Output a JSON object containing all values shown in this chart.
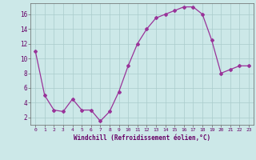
{
  "x": [
    0,
    1,
    2,
    3,
    4,
    5,
    6,
    7,
    8,
    9,
    10,
    11,
    12,
    13,
    14,
    15,
    16,
    17,
    18,
    19,
    20,
    21,
    22,
    23
  ],
  "y": [
    11,
    5,
    3,
    2.8,
    4.5,
    3,
    3,
    1.5,
    2.8,
    5.5,
    9,
    12,
    14,
    15.5,
    16,
    16.5,
    17,
    17,
    16,
    12.5,
    8,
    8.5,
    9,
    9
  ],
  "line_color": "#993399",
  "marker": "D",
  "marker_size": 2.0,
  "bg_color": "#cce8e8",
  "grid_color": "#aacccc",
  "xlabel": "Windchill (Refroidissement éolien,°C)",
  "xlabel_color": "#660066",
  "tick_color": "#660066",
  "yticks": [
    2,
    4,
    6,
    8,
    10,
    12,
    14,
    16
  ],
  "ylim": [
    1.0,
    17.5
  ],
  "xlim": [
    -0.5,
    23.5
  ]
}
